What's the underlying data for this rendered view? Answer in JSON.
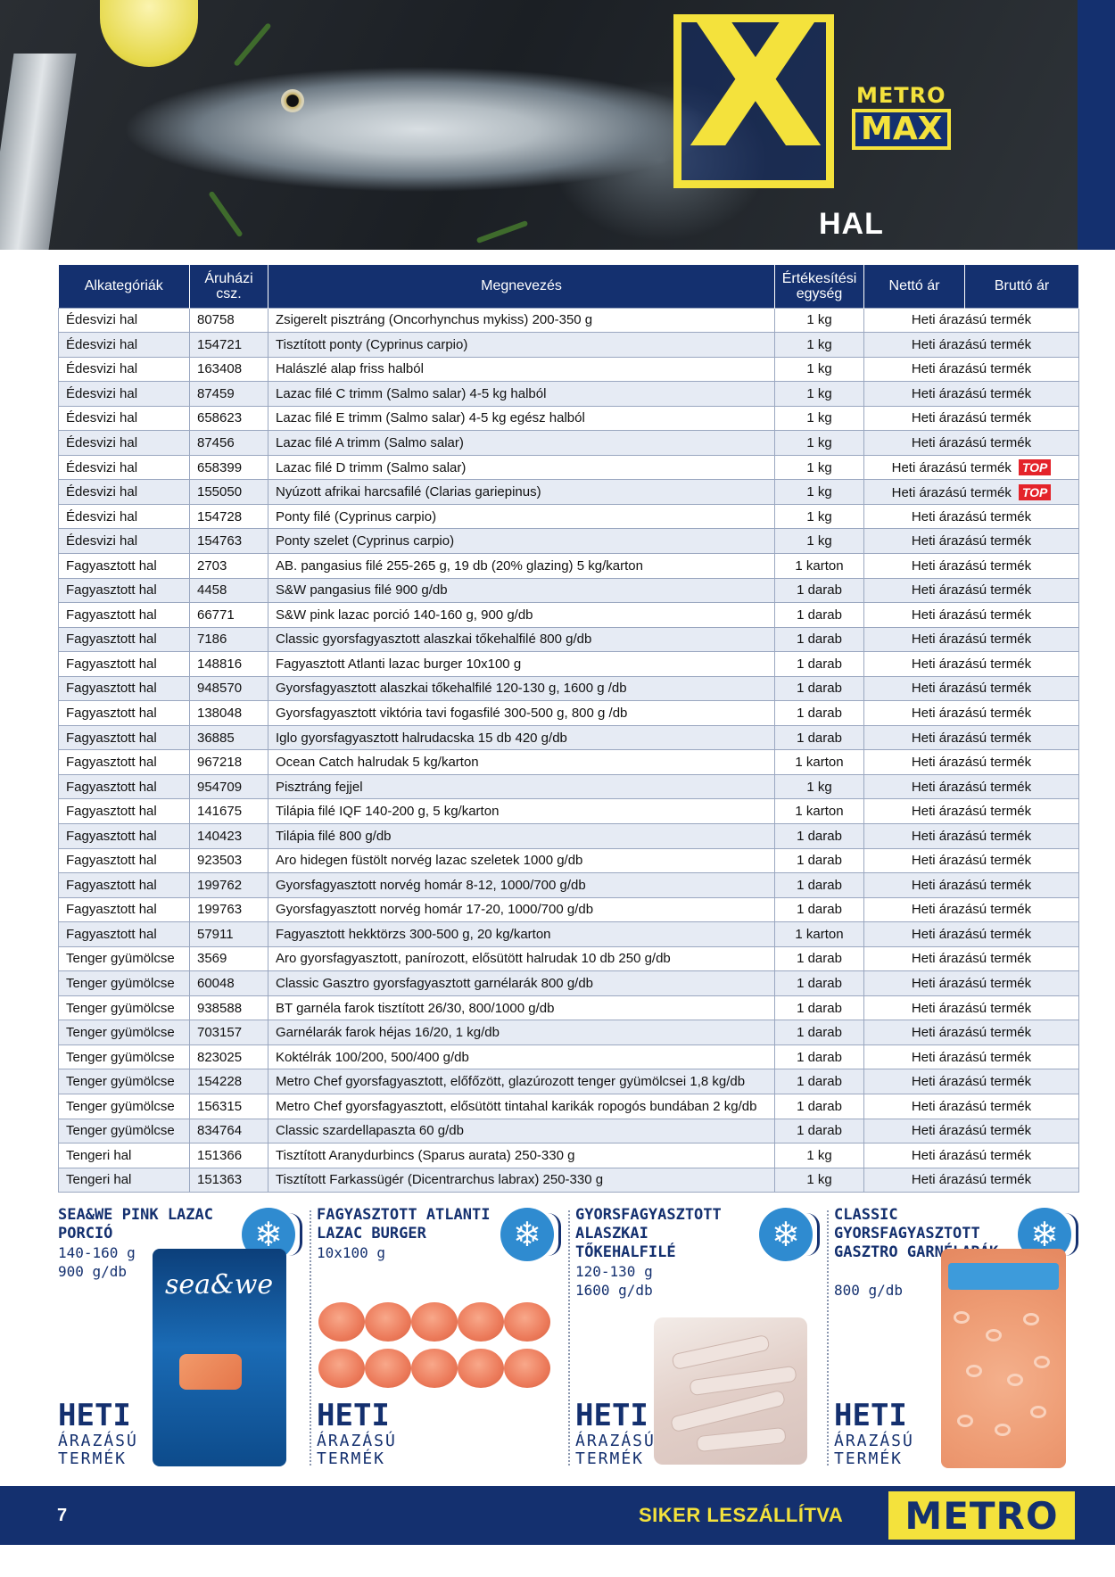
{
  "header": {
    "brand_metro": "METRO",
    "brand_max": "MAX",
    "section_title": "HAL"
  },
  "table": {
    "columns": [
      "Alkategóriák",
      "Áruházi csz.",
      "Megnevezés",
      "Értékesítési egység",
      "Nettó ár",
      "Bruttó ár"
    ],
    "rows": [
      {
        "cat": "Édesvizi hal",
        "code": "80758",
        "name": "Zsigerelt pisztráng (Oncorhynchus mykiss) 200-350 g",
        "unit": "1 kg",
        "price": "Heti árazású termék",
        "top": ""
      },
      {
        "cat": "Édesvizi hal",
        "code": "154721",
        "name": "Tisztított ponty (Cyprinus carpio)",
        "unit": "1 kg",
        "price": "Heti árazású termék",
        "top": ""
      },
      {
        "cat": "Édesvizi hal",
        "code": "163408",
        "name": "Halászlé alap friss halból",
        "unit": "1 kg",
        "price": "Heti árazású termék",
        "top": ""
      },
      {
        "cat": "Édesvizi hal",
        "code": "87459",
        "name": "Lazac filé C trimm (Salmo salar) 4-5 kg halból",
        "unit": "1 kg",
        "price": "Heti árazású termék",
        "top": ""
      },
      {
        "cat": "Édesvizi hal",
        "code": "658623",
        "name": "Lazac filé E trimm (Salmo salar) 4-5 kg egész halból",
        "unit": "1 kg",
        "price": "Heti árazású termék",
        "top": ""
      },
      {
        "cat": "Édesvizi hal",
        "code": "87456",
        "name": "Lazac filé A trimm (Salmo salar)",
        "unit": "1 kg",
        "price": "Heti árazású termék",
        "top": ""
      },
      {
        "cat": "Édesvizi hal",
        "code": "658399",
        "name": "Lazac filé D trimm (Salmo salar)",
        "unit": "1 kg",
        "price": "Heti árazású termék",
        "top": "TOP"
      },
      {
        "cat": "Édesvizi hal",
        "code": "155050",
        "name": "Nyúzott afrikai harcsafilé (Clarias gariepinus)",
        "unit": "1 kg",
        "price": "Heti árazású termék",
        "top": "TOP"
      },
      {
        "cat": "Édesvizi hal",
        "code": "154728",
        "name": "Ponty filé (Cyprinus carpio)",
        "unit": "1 kg",
        "price": "Heti árazású termék",
        "top": ""
      },
      {
        "cat": "Édesvizi hal",
        "code": "154763",
        "name": "Ponty szelet (Cyprinus carpio)",
        "unit": "1 kg",
        "price": "Heti árazású termék",
        "top": ""
      },
      {
        "cat": "Fagyasztott hal",
        "code": "2703",
        "name": "AB. pangasius filé 255-265 g, 19 db (20% glazing) 5 kg/karton",
        "unit": "1 karton",
        "price": "Heti árazású termék",
        "top": ""
      },
      {
        "cat": "Fagyasztott hal",
        "code": "4458",
        "name": "S&W pangasius filé 900 g/db",
        "unit": "1 darab",
        "price": "Heti árazású termék",
        "top": ""
      },
      {
        "cat": "Fagyasztott hal",
        "code": "66771",
        "name": "S&W pink lazac porció 140-160 g, 900 g/db",
        "unit": "1 darab",
        "price": "Heti árazású termék",
        "top": ""
      },
      {
        "cat": "Fagyasztott hal",
        "code": "7186",
        "name": "Classic gyorsfagyasztott alaszkai tőkehalfilé 800 g/db",
        "unit": "1 darab",
        "price": "Heti árazású termék",
        "top": ""
      },
      {
        "cat": "Fagyasztott hal",
        "code": "148816",
        "name": "Fagyasztott Atlanti lazac burger 10x100 g",
        "unit": "1 darab",
        "price": "Heti árazású termék",
        "top": ""
      },
      {
        "cat": "Fagyasztott hal",
        "code": "948570",
        "name": "Gyorsfagyasztott alaszkai tőkehalfilé 120-130 g, 1600 g /db",
        "unit": "1 darab",
        "price": "Heti árazású termék",
        "top": ""
      },
      {
        "cat": "Fagyasztott hal",
        "code": "138048",
        "name": "Gyorsfagyasztott viktória tavi fogasfilé 300-500 g, 800 g /db",
        "unit": "1 darab",
        "price": "Heti árazású termék",
        "top": ""
      },
      {
        "cat": "Fagyasztott hal",
        "code": "36885",
        "name": "Iglo gyorsfagyasztott halrudacska 15 db 420 g/db",
        "unit": "1 darab",
        "price": "Heti árazású termék",
        "top": ""
      },
      {
        "cat": "Fagyasztott hal",
        "code": "967218",
        "name": "Ocean Catch halrudak 5 kg/karton",
        "unit": "1 karton",
        "price": "Heti árazású termék",
        "top": ""
      },
      {
        "cat": "Fagyasztott hal",
        "code": "954709",
        "name": "Pisztráng fejjel",
        "unit": "1 kg",
        "price": "Heti árazású termék",
        "top": ""
      },
      {
        "cat": "Fagyasztott hal",
        "code": "141675",
        "name": "Tilápia filé IQF 140-200 g, 5 kg/karton",
        "unit": "1 karton",
        "price": "Heti árazású termék",
        "top": ""
      },
      {
        "cat": "Fagyasztott hal",
        "code": "140423",
        "name": "Tilápia filé 800 g/db",
        "unit": "1 darab",
        "price": "Heti árazású termék",
        "top": ""
      },
      {
        "cat": "Fagyasztott hal",
        "code": "923503",
        "name": "Aro hidegen füstölt norvég lazac szeletek 1000 g/db",
        "unit": "1 darab",
        "price": "Heti árazású termék",
        "top": ""
      },
      {
        "cat": "Fagyasztott hal",
        "code": "199762",
        "name": "Gyorsfagyasztott norvég homár 8-12, 1000/700 g/db",
        "unit": "1 darab",
        "price": "Heti árazású termék",
        "top": ""
      },
      {
        "cat": "Fagyasztott hal",
        "code": "199763",
        "name": "Gyorsfagyasztott norvég homár 17-20, 1000/700 g/db",
        "unit": "1 darab",
        "price": "Heti árazású termék",
        "top": ""
      },
      {
        "cat": "Fagyasztott hal",
        "code": "57911",
        "name": "Fagyasztott hekktörzs 300-500 g, 20 kg/karton",
        "unit": "1 karton",
        "price": "Heti árazású termék",
        "top": ""
      },
      {
        "cat": "Tenger gyümölcse",
        "code": "3569",
        "name": "Aro gyorsfagyasztott, panírozott, elősütött halrudak 10 db 250 g/db",
        "unit": "1 darab",
        "price": "Heti árazású termék",
        "top": ""
      },
      {
        "cat": "Tenger gyümölcse",
        "code": "60048",
        "name": "Classic Gasztro gyorsfagyasztott garnélarák 800 g/db",
        "unit": "1 darab",
        "price": "Heti árazású termék",
        "top": ""
      },
      {
        "cat": "Tenger gyümölcse",
        "code": "938588",
        "name": "BT garnéla farok tisztított 26/30, 800/1000 g/db",
        "unit": "1 darab",
        "price": "Heti árazású termék",
        "top": ""
      },
      {
        "cat": "Tenger gyümölcse",
        "code": "703157",
        "name": "Garnélarák farok héjas 16/20, 1 kg/db",
        "unit": "1 darab",
        "price": "Heti árazású termék",
        "top": ""
      },
      {
        "cat": "Tenger gyümölcse",
        "code": "823025",
        "name": "Koktélrák 100/200, 500/400 g/db",
        "unit": "1 darab",
        "price": "Heti árazású termék",
        "top": ""
      },
      {
        "cat": "Tenger gyümölcse",
        "code": "154228",
        "name": "Metro Chef gyorsfagyasztott, előfőzött, glazúrozott tenger gyümölcsei 1,8 kg/db",
        "unit": "1 darab",
        "price": "Heti árazású termék",
        "top": ""
      },
      {
        "cat": "Tenger gyümölcse",
        "code": "156315",
        "name": "Metro Chef gyorsfagyasztott, elősütött tintahal karikák ropogós bundában 2 kg/db",
        "unit": "1 darab",
        "price": "Heti árazású termék",
        "top": ""
      },
      {
        "cat": "Tenger gyümölcse",
        "code": "834764",
        "name": "Classic szardellapaszta 60 g/db",
        "unit": "1 darab",
        "price": "Heti árazású termék",
        "top": ""
      },
      {
        "cat": "Tengeri hal",
        "code": "151366",
        "name": "Tisztított Aranydurbincs (Sparus aurata) 250-330 g",
        "unit": "1 kg",
        "price": "Heti árazású termék",
        "top": ""
      },
      {
        "cat": "Tengeri hal",
        "code": "151363",
        "name": "Tisztított Farkassügér (Dicentrarchus labrax) 250-330 g",
        "unit": "1 kg",
        "price": "Heti árazású termék",
        "top": ""
      }
    ]
  },
  "promos": [
    {
      "title": "SEA&WE PINK LAZAC PORCIÓ",
      "line1": "140-160 g",
      "line2": "900 g/db",
      "pack_text": "sea&we",
      "heti": "HETI",
      "arazasu": "ÁRAZÁSÚ",
      "termek": "TERMÉK",
      "icon": "snowflake-icon"
    },
    {
      "title": "FAGYASZTOTT ATLANTI LAZAC BURGER",
      "line1": "10x100 g",
      "line2": "",
      "pack_text": "",
      "heti": "HETI",
      "arazasu": "ÁRAZÁSÚ",
      "termek": "TERMÉK",
      "icon": "snowflake-icon"
    },
    {
      "title": "GYORSFAGYASZTOTT ALASZKAI TŐKEHALFILÉ",
      "line1": "120-130 g",
      "line2": "1600 g/db",
      "pack_text": "",
      "heti": "HETI",
      "arazasu": "ÁRAZÁSÚ",
      "termek": "TERMÉK",
      "icon": "snowflake-icon"
    },
    {
      "title": "CLASSIC GYORSFAGYASZTOTT GASZTRO GARNÉLARÁK",
      "line1": "800 g/db",
      "line2": "",
      "pack_text": "",
      "heti": "HETI",
      "arazasu": "ÁRAZÁSÚ",
      "termek": "TERMÉK",
      "icon": "snowflake-icon"
    }
  ],
  "footer": {
    "page_number": "7",
    "slogan": "SIKER LESZÁLLÍTVA",
    "logo_text": "METRO"
  },
  "colors": {
    "navy": "#14306f",
    "yellow": "#f4e23c",
    "badge_red": "#e4232a",
    "row_alt": "#e6ebf4"
  }
}
